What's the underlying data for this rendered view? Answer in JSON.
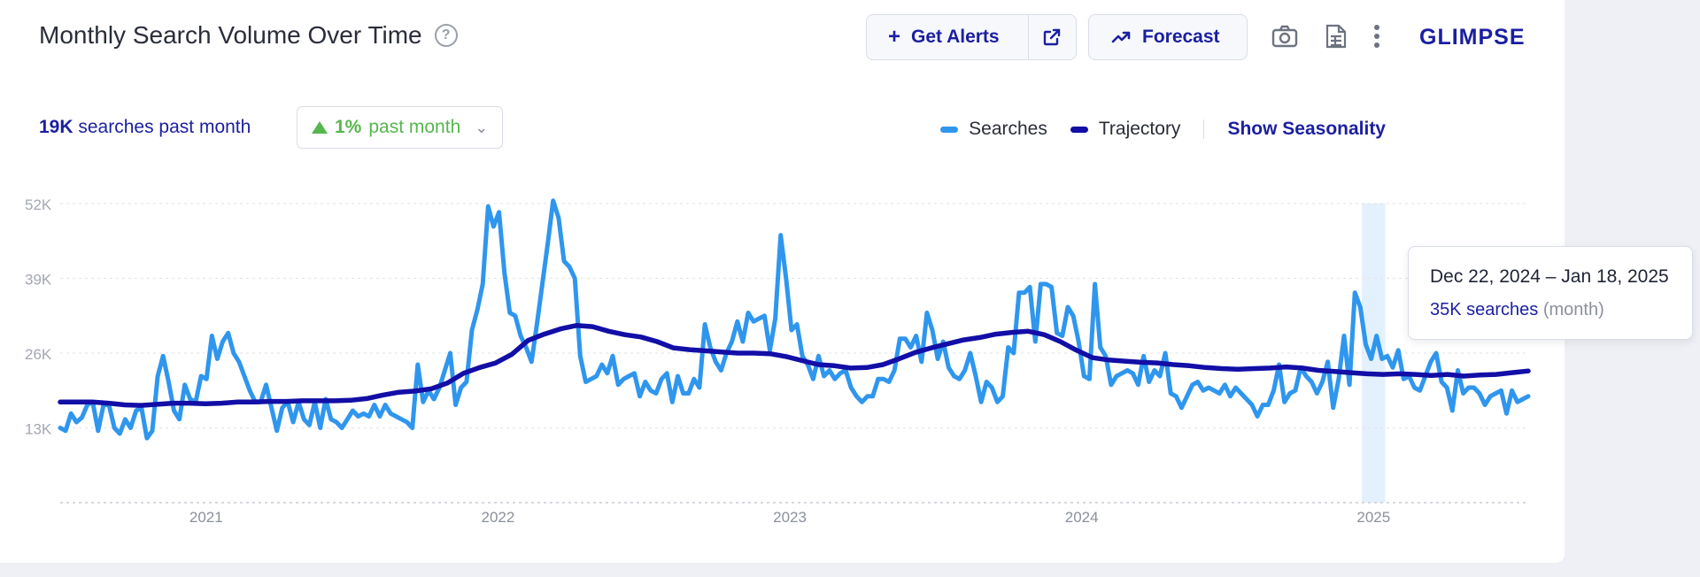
{
  "header": {
    "title": "Monthly Search Volume Over Time",
    "help_icon": "question-circle-icon",
    "get_alerts_label": "Get Alerts",
    "forecast_label": "Forecast",
    "brand": "GLIMPSE",
    "accent": "#1b1fa0"
  },
  "summary": {
    "volume": "19K",
    "volume_text": "searches past month",
    "change_value": "1%",
    "change_text": "past month",
    "change_color": "#55b74c"
  },
  "legend": {
    "searches_label": "Searches",
    "trajectory_label": "Trajectory",
    "seasonality_label": "Show Seasonality",
    "searches_color": "#2f96ee",
    "trajectory_color": "#120ea6"
  },
  "tooltip": {
    "date_range": "Dec 22, 2024 – Jan 18, 2025",
    "searches": "35K searches",
    "period": "(month)"
  },
  "chart_data": {
    "type": "line",
    "x_axis": {
      "start": 2020.5,
      "end": 2025.53,
      "ticks": [
        "2021",
        "2022",
        "2023",
        "2024",
        "2025"
      ],
      "tick_values": [
        2021,
        2022,
        2023,
        2024,
        2025
      ]
    },
    "y_axis": {
      "min": 0,
      "max": 52000,
      "ticks": [
        "13K",
        "26K",
        "39K",
        "52K"
      ],
      "tick_values": [
        13000,
        26000,
        39000,
        52000
      ]
    },
    "grid": true,
    "highlight": {
      "start": 2024.96,
      "end": 2025.04
    },
    "series": [
      {
        "name": "Searches",
        "type": "weekly",
        "values": [
          13000,
          12500,
          15500,
          14000,
          14800,
          17000,
          17500,
          12500,
          17000,
          17000,
          13000,
          12000,
          14500,
          13000,
          16000,
          16500,
          11200,
          12500,
          22000,
          25500,
          21000,
          16000,
          14500,
          20500,
          18000,
          17500,
          22000,
          21500,
          29000,
          25000,
          28000,
          29500,
          26000,
          24500,
          22000,
          19500,
          17500,
          17500,
          20500,
          16500,
          12500,
          16500,
          17500,
          14000,
          17500,
          14500,
          13500,
          17500,
          13000,
          18000,
          14500,
          14000,
          13000,
          14500,
          16000,
          15000,
          15500,
          15000,
          17000,
          15000,
          17000,
          15500,
          15000,
          14500,
          14000,
          13000,
          24000,
          17500,
          19500,
          18000,
          20000,
          23000,
          26000,
          17000,
          20000,
          21000,
          30000,
          33500,
          38000,
          51500,
          48000,
          50500,
          40000,
          33000,
          32500,
          29000,
          27000,
          24500,
          31000,
          38000,
          45000,
          52500,
          49500,
          42000,
          41000,
          39000,
          25500,
          21000,
          21500,
          22000,
          24000,
          22500,
          25500,
          20500,
          21500,
          22000,
          22500,
          18500,
          21000,
          19500,
          19000,
          21500,
          22500,
          17500,
          22000,
          19000,
          19000,
          21500,
          20000,
          31000,
          27000,
          24500,
          23000,
          26000,
          28000,
          31500,
          28000,
          33000,
          31500,
          32000,
          32500,
          26500,
          32000,
          46500,
          39000,
          30000,
          31000,
          25500,
          24000,
          21500,
          25500,
          22000,
          23000,
          21500,
          22500,
          23000,
          20000,
          18500,
          17500,
          18500,
          18500,
          21500,
          21500,
          21000,
          23000,
          28500,
          28500,
          27000,
          29000,
          24500,
          33000,
          30000,
          25000,
          28000,
          23500,
          22000,
          21500,
          23000,
          26000,
          22000,
          17500,
          21000,
          20000,
          17500,
          18500,
          27000,
          26000,
          36500,
          36500,
          37500,
          28000,
          38000,
          38000,
          37500,
          29500,
          29000,
          34000,
          32500,
          28000,
          22000,
          21500,
          38000,
          27000,
          25500,
          20500,
          22000,
          22500,
          23000,
          22500,
          20500,
          25500,
          21000,
          23000,
          22000,
          26000,
          19000,
          18500,
          16500,
          18500,
          20500,
          21000,
          19500,
          20000,
          19500,
          19000,
          20500,
          18500,
          20000,
          19000,
          18000,
          17000,
          15000,
          17000,
          17000,
          19500,
          24000,
          17500,
          19000,
          19500,
          23500,
          22000,
          21000,
          19000,
          21000,
          24500,
          16500,
          21500,
          29000,
          20500,
          36500,
          34000,
          27500,
          25000,
          29000,
          25000,
          25500,
          23500,
          26500,
          21500,
          22000,
          20000,
          19500,
          22000,
          24500,
          26000,
          21000,
          20000,
          16000,
          23000,
          19000,
          20000,
          20000,
          19000,
          17000,
          18500,
          19000,
          19500,
          15500,
          19500,
          17500,
          18000,
          18500
        ],
        "color": "#2f96ee"
      },
      {
        "name": "Trajectory",
        "type": "smoothed",
        "values": [
          17500,
          17500,
          17500,
          17300,
          17000,
          16900,
          17100,
          17300,
          17300,
          17200,
          17300,
          17500,
          17500,
          17600,
          17600,
          17700,
          17700,
          17700,
          17800,
          18100,
          18700,
          19200,
          19400,
          19800,
          20800,
          22500,
          23500,
          24300,
          25800,
          28200,
          29300,
          30200,
          30800,
          30600,
          29800,
          29200,
          28800,
          28000,
          26900,
          26600,
          26400,
          26200,
          26000,
          26000,
          25900,
          25400,
          24700,
          24000,
          23800,
          23400,
          23500,
          24000,
          25000,
          26100,
          26900,
          27600,
          28300,
          28700,
          29300,
          29600,
          29800,
          29200,
          28000,
          26500,
          25200,
          24800,
          24600,
          24400,
          24300,
          24000,
          23800,
          23500,
          23300,
          23200,
          23300,
          23400,
          23600,
          23400,
          23000,
          22800,
          22600,
          22400,
          22300,
          22400,
          22300,
          22100,
          22300,
          22000,
          22200,
          22300,
          22600,
          22900
        ],
        "color": "#120ea6"
      }
    ]
  }
}
